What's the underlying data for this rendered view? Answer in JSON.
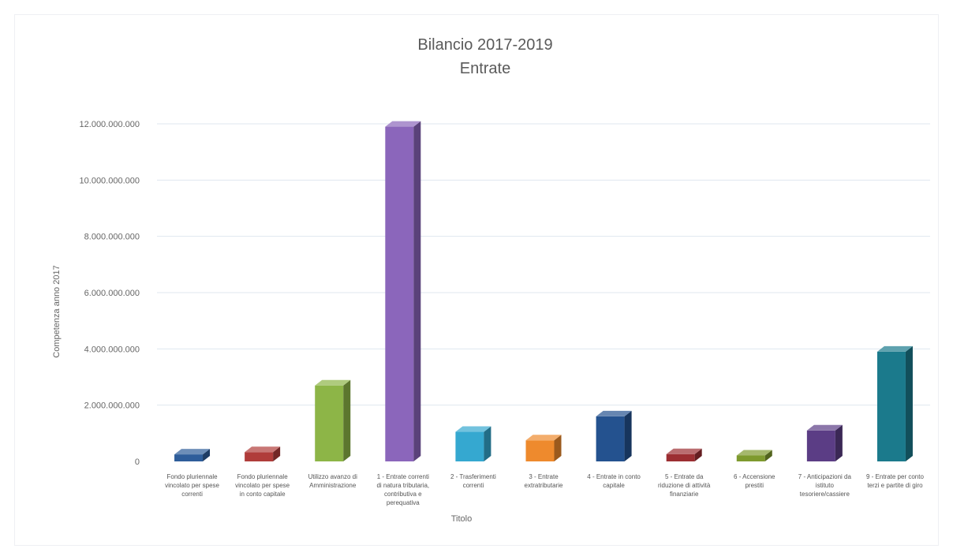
{
  "chart_data": {
    "type": "bar",
    "title": "Bilancio 2017-2019",
    "subtitle": "Entrate",
    "xlabel": "Titolo",
    "ylabel": "Competenza anno 2017",
    "ylim": [
      0,
      12000000000
    ],
    "yticks": [
      0,
      2000000000,
      4000000000,
      6000000000,
      8000000000,
      10000000000,
      12000000000
    ],
    "ytick_labels": [
      "0",
      "2.000.000.000",
      "4.000.000.000",
      "6.000.000.000",
      "8.000.000.000",
      "10.000.000.000",
      "12.000.000.000"
    ],
    "grid": true,
    "style": "3d-columns",
    "categories": [
      [
        "Fondo pluriennale",
        "vincolato per spese",
        "correnti"
      ],
      [
        "Fondo pluriennale",
        "vincolato per spese",
        "in conto capitale"
      ],
      [
        "Utilizzo avanzo di",
        "Amministrazione"
      ],
      [
        "1 - Entrate correnti",
        "di natura tributaria,",
        "contributiva e",
        "perequativa"
      ],
      [
        "2 - Trasferimenti",
        "correnti"
      ],
      [
        "3 - Entrate",
        "extratributarie"
      ],
      [
        "4 - Entrate in conto",
        "capitale"
      ],
      [
        "5 - Entrate da",
        "riduzione di attività",
        "finanziarie"
      ],
      [
        "6 - Accensione",
        "prestiti"
      ],
      [
        "7 - Anticipazioni da",
        "istituto",
        "tesoriere/cassiere"
      ],
      [
        "9 - Entrate per conto",
        "terzi e partite di giro"
      ]
    ],
    "values": [
      250000000,
      330000000,
      2700000000,
      11900000000,
      1050000000,
      750000000,
      1600000000,
      260000000,
      210000000,
      1100000000,
      3900000000
    ],
    "colors": [
      "#2e5d9a",
      "#b03c3a",
      "#8db547",
      "#8b66bb",
      "#35a8d0",
      "#ee8a2d",
      "#24528f",
      "#9c2e32",
      "#7e9a2e",
      "#5b3d85",
      "#1b7a8c"
    ]
  }
}
